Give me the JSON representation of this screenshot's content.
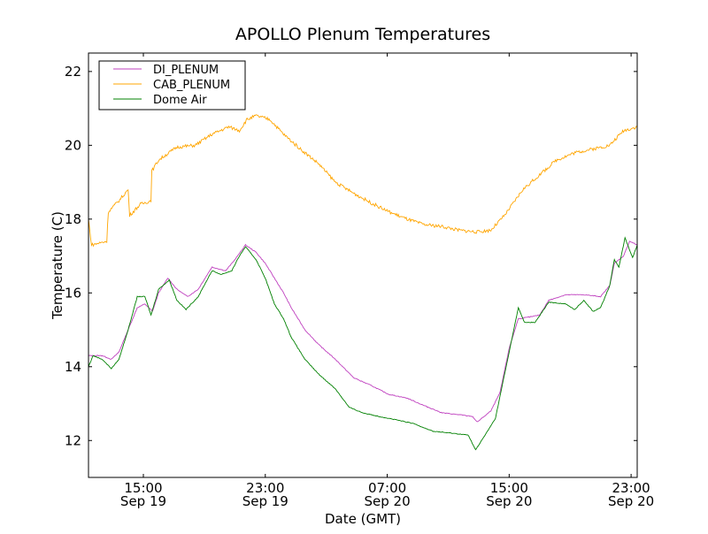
{
  "chart_data": {
    "type": "line",
    "title": "APOLLO Plenum Temperatures",
    "xlabel": "Date (GMT)",
    "ylabel": "Temperature (C)",
    "x_units": "hours since Sep 19 00:00 GMT",
    "xlim": [
      11.4,
      47.4
    ],
    "ylim": [
      11,
      22.5
    ],
    "grid": false,
    "legend_position": "top-left",
    "x_ticks": [
      {
        "value": 15,
        "time": "15:00",
        "date": "Sep 19"
      },
      {
        "value": 23,
        "time": "23:00",
        "date": "Sep 19"
      },
      {
        "value": 31,
        "time": "07:00",
        "date": "Sep 20"
      },
      {
        "value": 39,
        "time": "15:00",
        "date": "Sep 20"
      },
      {
        "value": 47,
        "time": "23:00",
        "date": "Sep 20"
      }
    ],
    "y_ticks": [
      12,
      14,
      16,
      18,
      20,
      22
    ],
    "series": [
      {
        "name": "DI_PLENUM",
        "color": "#bf40bf",
        "x": [
          11.4,
          12.3,
          12.9,
          13.4,
          14.0,
          14.6,
          15.1,
          15.6,
          16.0,
          16.6,
          17.2,
          17.9,
          18.6,
          19.5,
          20.4,
          21.0,
          21.7,
          22.4,
          23.0,
          23.6,
          24.2,
          24.7,
          25.6,
          26.5,
          27.6,
          28.8,
          29.9,
          31.1,
          32.3,
          33.4,
          34.6,
          35.7,
          36.6,
          36.9,
          37.8,
          38.4,
          39.0,
          39.6,
          40.4,
          41.0,
          41.6,
          42.7,
          43.9,
          45.0,
          45.6,
          45.9,
          46.5,
          46.9,
          47.4
        ],
        "y": [
          14.3,
          14.3,
          14.2,
          14.4,
          15.0,
          15.6,
          15.7,
          15.5,
          16.0,
          16.4,
          16.1,
          15.9,
          16.1,
          16.7,
          16.6,
          16.9,
          17.3,
          17.1,
          16.8,
          16.4,
          16.0,
          15.6,
          15.0,
          14.6,
          14.2,
          13.7,
          13.5,
          13.25,
          13.15,
          12.95,
          12.75,
          12.7,
          12.65,
          12.5,
          12.8,
          13.3,
          14.5,
          15.3,
          15.35,
          15.4,
          15.8,
          15.95,
          15.95,
          15.9,
          16.2,
          16.8,
          17.0,
          17.4,
          17.3
        ]
      },
      {
        "name": "CAB_PLENUM",
        "color": "#ffa500",
        "x": [
          11.4,
          11.6,
          12.6,
          12.7,
          13.4,
          14.0,
          14.1,
          14.8,
          15.5,
          15.55,
          16.0,
          17.2,
          18.4,
          19.5,
          20.6,
          21.3,
          21.8,
          22.4,
          23.3,
          24.2,
          25.3,
          26.5,
          27.6,
          28.8,
          29.9,
          31.1,
          32.3,
          33.4,
          34.6,
          35.7,
          36.9,
          37.8,
          38.7,
          39.9,
          41.0,
          42.1,
          43.3,
          44.5,
          45.6,
          46.5,
          47.4
        ],
        "y": [
          18.0,
          17.3,
          17.4,
          18.2,
          18.5,
          18.8,
          18.1,
          18.4,
          18.5,
          19.3,
          19.6,
          19.95,
          20.0,
          20.3,
          20.5,
          20.4,
          20.7,
          20.8,
          20.7,
          20.3,
          19.9,
          19.5,
          19.0,
          18.7,
          18.45,
          18.2,
          18.0,
          17.85,
          17.8,
          17.7,
          17.65,
          17.7,
          18.1,
          18.8,
          19.2,
          19.6,
          19.8,
          19.9,
          20.0,
          20.4,
          20.5
        ]
      },
      {
        "name": "Dome Air",
        "color": "#008000",
        "x": [
          11.4,
          11.7,
          12.3,
          12.9,
          13.4,
          14.0,
          14.6,
          15.1,
          15.5,
          16.0,
          16.7,
          17.2,
          17.8,
          18.6,
          19.5,
          20.1,
          20.8,
          21.3,
          21.7,
          22.4,
          23.0,
          23.6,
          24.2,
          24.7,
          25.6,
          26.5,
          27.6,
          28.5,
          29.4,
          30.5,
          31.7,
          32.8,
          34.0,
          35.2,
          36.3,
          36.8,
          37.5,
          38.1,
          38.6,
          39.3,
          39.6,
          40.0,
          40.7,
          41.6,
          42.7,
          43.3,
          43.9,
          44.5,
          45.0,
          45.6,
          45.9,
          46.2,
          46.6,
          47.1,
          47.4
        ],
        "y": [
          14.0,
          14.3,
          14.2,
          13.95,
          14.2,
          15.0,
          15.9,
          15.9,
          15.4,
          16.1,
          16.35,
          15.8,
          15.55,
          15.9,
          16.6,
          16.5,
          16.6,
          17.0,
          17.25,
          16.9,
          16.4,
          15.7,
          15.3,
          14.8,
          14.2,
          13.8,
          13.4,
          12.9,
          12.75,
          12.65,
          12.55,
          12.45,
          12.25,
          12.2,
          12.15,
          11.75,
          12.2,
          12.6,
          13.6,
          15.0,
          15.6,
          15.2,
          15.2,
          15.75,
          15.7,
          15.55,
          15.8,
          15.5,
          15.6,
          16.2,
          16.9,
          16.7,
          17.5,
          16.95,
          17.3
        ]
      }
    ]
  }
}
